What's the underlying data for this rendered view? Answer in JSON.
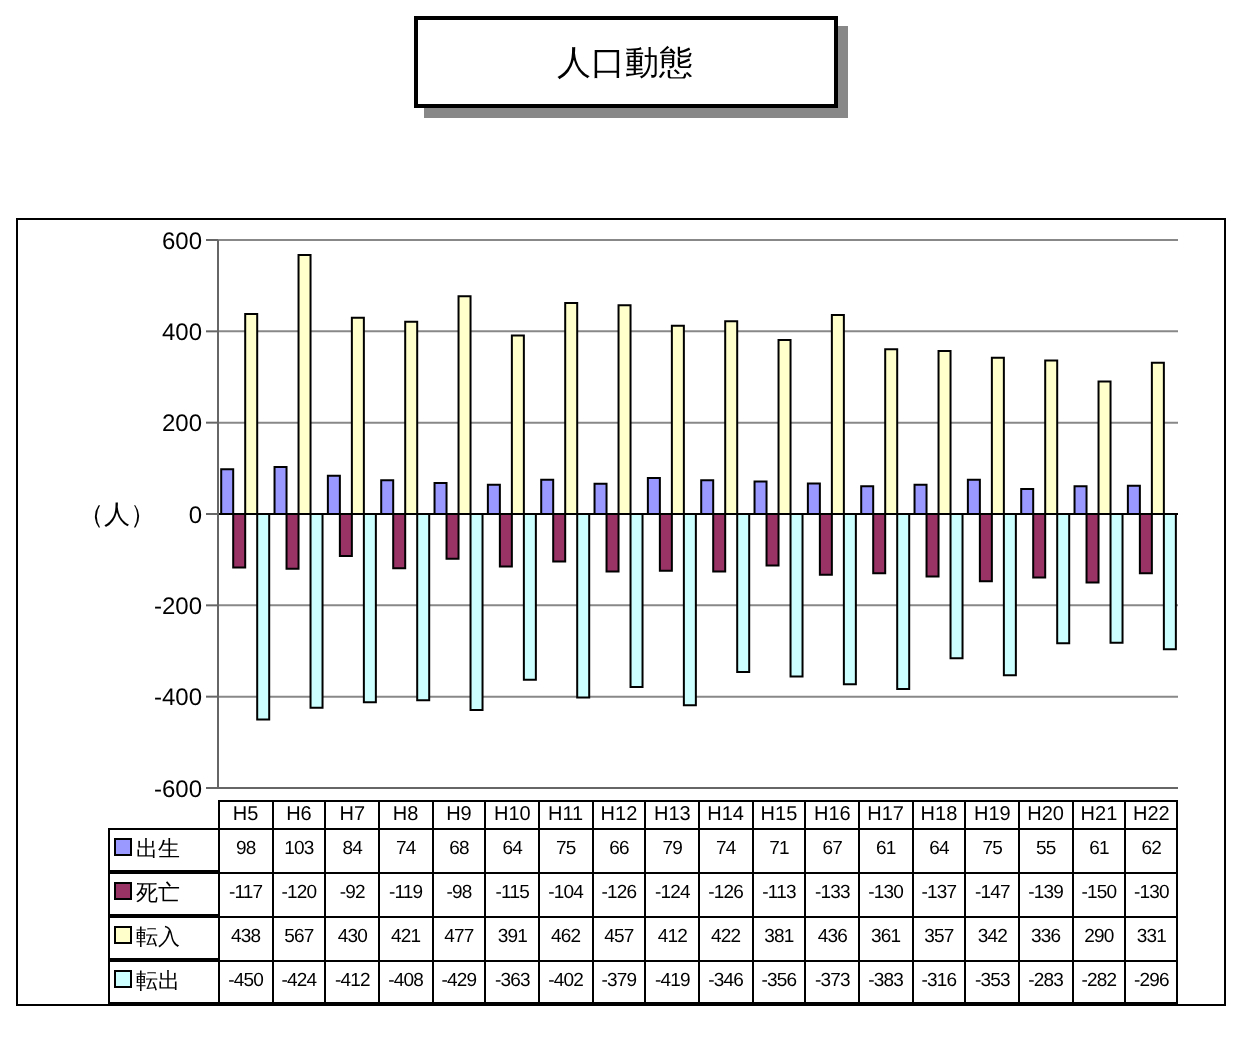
{
  "chart_data": {
    "type": "bar",
    "title": "人口動態",
    "ylabel": "（人）",
    "categories": [
      "H5",
      "H6",
      "H7",
      "H8",
      "H9",
      "H10",
      "H11",
      "H12",
      "H13",
      "H14",
      "H15",
      "H16",
      "H17",
      "H18",
      "H19",
      "H20",
      "H21",
      "H22"
    ],
    "series": [
      {
        "name": "出生",
        "color": "#9999ff",
        "values": [
          98,
          103,
          84,
          74,
          68,
          64,
          75,
          66,
          79,
          74,
          71,
          67,
          61,
          64,
          75,
          55,
          61,
          62
        ]
      },
      {
        "name": "死亡",
        "color": "#993366",
        "values": [
          -117,
          -120,
          -92,
          -119,
          -98,
          -115,
          -104,
          -126,
          -124,
          -126,
          -113,
          -133,
          -130,
          -137,
          -147,
          -139,
          -150,
          -130
        ]
      },
      {
        "name": "転入",
        "color": "#ffffcc",
        "values": [
          438,
          567,
          430,
          421,
          477,
          391,
          462,
          457,
          412,
          422,
          381,
          436,
          361,
          357,
          342,
          336,
          290,
          331
        ]
      },
      {
        "name": "転出",
        "color": "#ccffff",
        "values": [
          -450,
          -424,
          -412,
          -408,
          -429,
          -363,
          -402,
          -379,
          -419,
          -346,
          -356,
          -373,
          -383,
          -316,
          -353,
          -283,
          -282,
          -296
        ]
      }
    ],
    "ylim": [
      -600,
      600
    ],
    "yticks": [
      -600,
      -400,
      -200,
      0,
      200,
      400,
      600
    ],
    "grid": "y",
    "legend": "bottom",
    "data_labels": true,
    "tick_labels": "y"
  }
}
